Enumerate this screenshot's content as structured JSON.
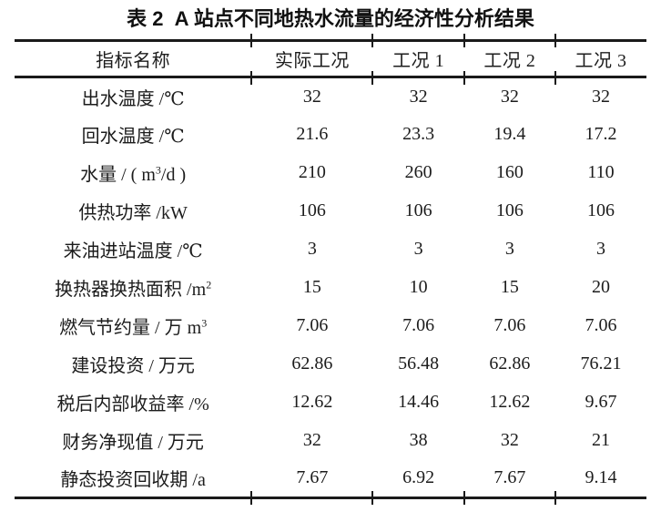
{
  "title": "表 2  A 站点不同地热水流量的经济性分析结果",
  "colors": {
    "rule": "#1a1a1a",
    "text": "#1c1c1c",
    "bg": "#ffffff"
  },
  "table": {
    "columns": [
      "指标名称",
      "实际工况",
      "工况 1",
      "工况 2",
      "工况 3"
    ],
    "rows": [
      {
        "label": [
          {
            "t": "出水温度 /℃"
          }
        ],
        "values": [
          "32",
          "32",
          "32",
          "32"
        ]
      },
      {
        "label": [
          {
            "t": "回水温度 /℃"
          }
        ],
        "values": [
          "21.6",
          "23.3",
          "19.4",
          "17.2"
        ]
      },
      {
        "label": [
          {
            "t": "水量 / ( m"
          },
          {
            "t": "3",
            "sup": true
          },
          {
            "t": "/d )"
          }
        ],
        "values": [
          "210",
          "260",
          "160",
          "110"
        ]
      },
      {
        "label": [
          {
            "t": "供热功率 /kW"
          }
        ],
        "values": [
          "106",
          "106",
          "106",
          "106"
        ]
      },
      {
        "label": [
          {
            "t": "来油进站温度 /℃"
          }
        ],
        "values": [
          "3",
          "3",
          "3",
          "3"
        ]
      },
      {
        "label": [
          {
            "t": "换热器换热面积 /m"
          },
          {
            "t": "2",
            "sup": true
          }
        ],
        "values": [
          "15",
          "10",
          "15",
          "20"
        ]
      },
      {
        "label": [
          {
            "t": "燃气节约量 / 万 m"
          },
          {
            "t": "3",
            "sup": true
          }
        ],
        "values": [
          "7.06",
          "7.06",
          "7.06",
          "7.06"
        ]
      },
      {
        "label": [
          {
            "t": "建设投资 / 万元"
          }
        ],
        "values": [
          "62.86",
          "56.48",
          "62.86",
          "76.21"
        ]
      },
      {
        "label": [
          {
            "t": "税后内部收益率 /%"
          }
        ],
        "values": [
          "12.62",
          "14.46",
          "12.62",
          "9.67"
        ]
      },
      {
        "label": [
          {
            "t": "财务净现值 / 万元"
          }
        ],
        "values": [
          "32",
          "38",
          "32",
          "21"
        ]
      },
      {
        "label": [
          {
            "t": "静态投资回收期 /a"
          }
        ],
        "values": [
          "7.67",
          "6.92",
          "7.67",
          "9.14"
        ]
      }
    ]
  },
  "chart_data": {
    "type": "table",
    "title": "表 2  A 站点不同地热水流量的经济性分析结果",
    "columns": [
      "指标名称",
      "实际工况",
      "工况 1",
      "工况 2",
      "工况 3"
    ],
    "rows": [
      [
        "出水温度 /℃",
        "32",
        "32",
        "32",
        "32"
      ],
      [
        "回水温度 /℃",
        "21.6",
        "23.3",
        "19.4",
        "17.2"
      ],
      [
        "水量 / ( m3/d )",
        "210",
        "260",
        "160",
        "110"
      ],
      [
        "供热功率 /kW",
        "106",
        "106",
        "106",
        "106"
      ],
      [
        "来油进站温度 /℃",
        "3",
        "3",
        "3",
        "3"
      ],
      [
        "换热器换热面积 /m2",
        "15",
        "10",
        "15",
        "20"
      ],
      [
        "燃气节约量 / 万 m3",
        "7.06",
        "7.06",
        "7.06",
        "7.06"
      ],
      [
        "建设投资 / 万元",
        "62.86",
        "56.48",
        "62.86",
        "76.21"
      ],
      [
        "税后内部收益率 /%",
        "12.62",
        "14.46",
        "12.62",
        "9.67"
      ],
      [
        "财务净现值 / 万元",
        "32",
        "38",
        "32",
        "21"
      ],
      [
        "静态投资回收期 /a",
        "7.67",
        "6.92",
        "7.67",
        "9.14"
      ]
    ]
  }
}
